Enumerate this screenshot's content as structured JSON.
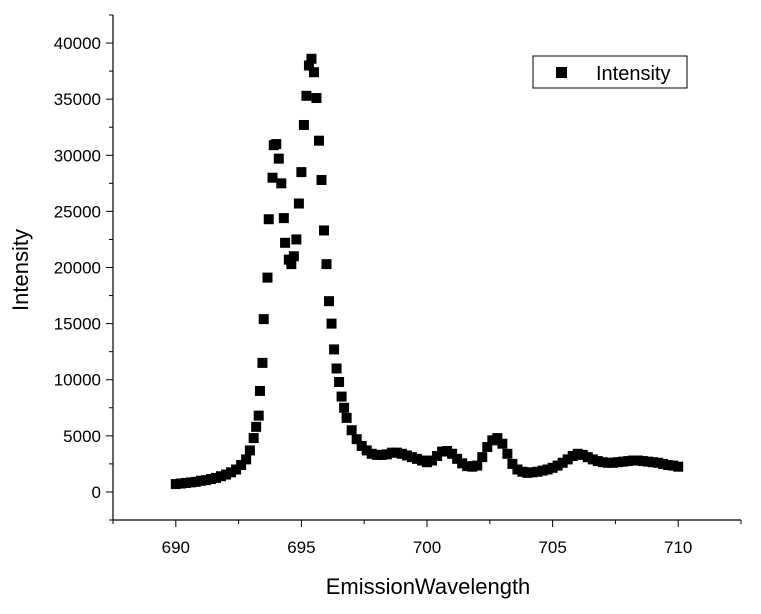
{
  "chart_data": {
    "type": "scatter",
    "xlabel": "EmissionWavelength",
    "ylabel": "Intensity",
    "xlim": [
      687.5,
      712.5
    ],
    "ylim": [
      -2500,
      42500
    ],
    "xticks": [
      690,
      695,
      700,
      705,
      710
    ],
    "yticks": [
      0,
      5000,
      10000,
      15000,
      20000,
      25000,
      30000,
      35000,
      40000
    ],
    "grid": false,
    "legend": {
      "placement": "top-right"
    },
    "series": [
      {
        "name": "Intensity",
        "color": "#000000",
        "marker": "square",
        "points": [
          [
            690.0,
            700
          ],
          [
            690.2,
            750
          ],
          [
            690.4,
            800
          ],
          [
            690.6,
            850
          ],
          [
            690.8,
            900
          ],
          [
            691.0,
            1000
          ],
          [
            691.2,
            1050
          ],
          [
            691.4,
            1150
          ],
          [
            691.6,
            1250
          ],
          [
            691.8,
            1400
          ],
          [
            692.0,
            1550
          ],
          [
            692.2,
            1750
          ],
          [
            692.4,
            2000
          ],
          [
            692.6,
            2400
          ],
          [
            692.8,
            2900
          ],
          [
            692.95,
            3700
          ],
          [
            693.1,
            4800
          ],
          [
            693.2,
            5800
          ],
          [
            693.3,
            6800
          ],
          [
            693.35,
            9000
          ],
          [
            693.45,
            11500
          ],
          [
            693.5,
            15400
          ],
          [
            693.65,
            19100
          ],
          [
            693.7,
            24300
          ],
          [
            693.85,
            28000
          ],
          [
            693.9,
            30900
          ],
          [
            694.0,
            31000
          ],
          [
            694.1,
            29700
          ],
          [
            694.2,
            27500
          ],
          [
            694.3,
            24400
          ],
          [
            694.35,
            22200
          ],
          [
            694.5,
            20700
          ],
          [
            694.6,
            20300
          ],
          [
            694.7,
            21000
          ],
          [
            694.8,
            22500
          ],
          [
            694.9,
            25700
          ],
          [
            695.0,
            28500
          ],
          [
            695.1,
            32700
          ],
          [
            695.2,
            35300
          ],
          [
            695.3,
            38000
          ],
          [
            695.4,
            38600
          ],
          [
            695.5,
            37400
          ],
          [
            695.6,
            35100
          ],
          [
            695.7,
            31300
          ],
          [
            695.8,
            27800
          ],
          [
            695.9,
            23300
          ],
          [
            696.0,
            20300
          ],
          [
            696.1,
            17000
          ],
          [
            696.2,
            15000
          ],
          [
            696.3,
            12700
          ],
          [
            696.4,
            11000
          ],
          [
            696.5,
            9800
          ],
          [
            696.6,
            8500
          ],
          [
            696.7,
            7500
          ],
          [
            696.8,
            6600
          ],
          [
            697.0,
            5500
          ],
          [
            697.2,
            4700
          ],
          [
            697.4,
            4100
          ],
          [
            697.6,
            3700
          ],
          [
            697.8,
            3400
          ],
          [
            698.0,
            3300
          ],
          [
            698.2,
            3300
          ],
          [
            698.4,
            3350
          ],
          [
            698.6,
            3500
          ],
          [
            698.8,
            3500
          ],
          [
            699.0,
            3400
          ],
          [
            699.2,
            3250
          ],
          [
            699.4,
            3100
          ],
          [
            699.6,
            2950
          ],
          [
            699.8,
            2800
          ],
          [
            700.0,
            2650
          ],
          [
            700.2,
            2800
          ],
          [
            700.4,
            3200
          ],
          [
            700.6,
            3600
          ],
          [
            700.8,
            3650
          ],
          [
            701.0,
            3400
          ],
          [
            701.2,
            2950
          ],
          [
            701.4,
            2550
          ],
          [
            701.6,
            2300
          ],
          [
            701.8,
            2250
          ],
          [
            702.0,
            2350
          ],
          [
            702.2,
            3100
          ],
          [
            702.4,
            4000
          ],
          [
            702.6,
            4600
          ],
          [
            702.8,
            4800
          ],
          [
            703.0,
            4300
          ],
          [
            703.2,
            3400
          ],
          [
            703.4,
            2500
          ],
          [
            703.6,
            2000
          ],
          [
            703.8,
            1800
          ],
          [
            704.0,
            1700
          ],
          [
            704.2,
            1750
          ],
          [
            704.4,
            1800
          ],
          [
            704.6,
            1900
          ],
          [
            704.8,
            2000
          ],
          [
            705.0,
            2150
          ],
          [
            705.2,
            2350
          ],
          [
            705.4,
            2600
          ],
          [
            705.6,
            2900
          ],
          [
            705.8,
            3200
          ],
          [
            706.0,
            3400
          ],
          [
            706.2,
            3300
          ],
          [
            706.4,
            3100
          ],
          [
            706.6,
            2900
          ],
          [
            706.8,
            2750
          ],
          [
            707.0,
            2650
          ],
          [
            707.2,
            2600
          ],
          [
            707.4,
            2600
          ],
          [
            707.6,
            2650
          ],
          [
            707.8,
            2700
          ],
          [
            708.0,
            2750
          ],
          [
            708.2,
            2800
          ],
          [
            708.4,
            2800
          ],
          [
            708.6,
            2750
          ],
          [
            708.8,
            2700
          ],
          [
            709.0,
            2650
          ],
          [
            709.2,
            2600
          ],
          [
            709.4,
            2500
          ],
          [
            709.6,
            2400
          ],
          [
            709.8,
            2350
          ],
          [
            710.0,
            2250
          ]
        ]
      }
    ]
  }
}
